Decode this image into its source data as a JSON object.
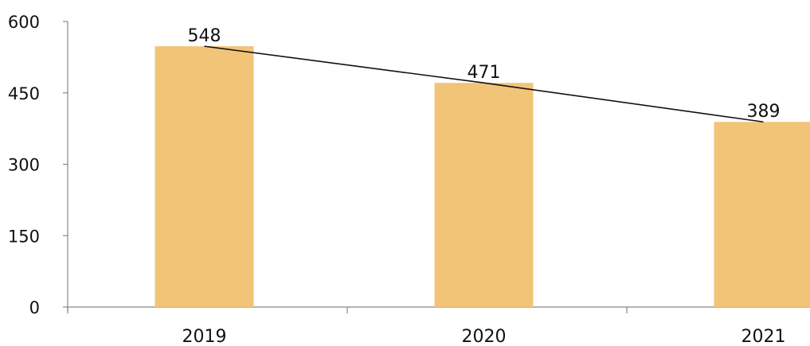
{
  "chart_data": {
    "type": "bar",
    "categories": [
      "2019",
      "2020",
      "2021"
    ],
    "values": [
      548,
      471,
      389
    ],
    "data_labels": [
      "548",
      "471",
      "389"
    ],
    "overlay": {
      "type": "line",
      "connects": "bar tops",
      "color": "#111111"
    },
    "title": "",
    "xlabel": "",
    "ylabel": "",
    "ylim": [
      0,
      600
    ],
    "yticks": [
      0,
      150,
      300,
      450,
      600
    ],
    "ytick_labels": [
      "0",
      "150",
      "300",
      "450",
      "600"
    ],
    "grid": false,
    "legend": "none",
    "colors": {
      "bar": "#F2C478",
      "line": "#111111",
      "axis": "#888888"
    }
  }
}
